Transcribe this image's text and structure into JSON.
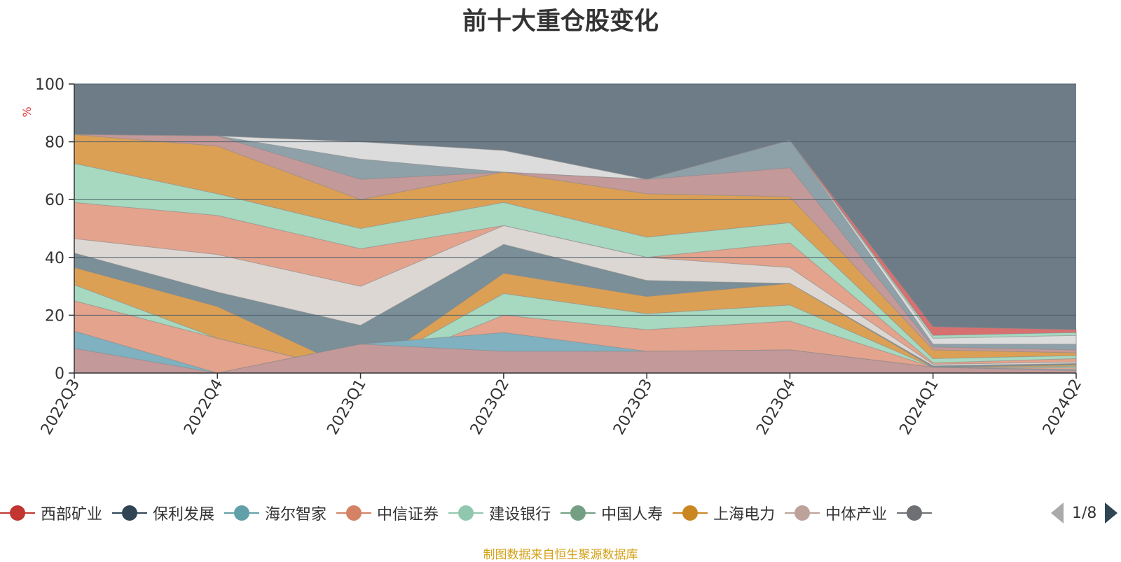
{
  "chart_data": {
    "type": "area",
    "title": "前十大重仓股变化",
    "ylabel": "%",
    "ylim": [
      0,
      100
    ],
    "yticks": [
      "0",
      "20",
      "40",
      "60",
      "80",
      "100"
    ],
    "categories": [
      "2022Q3",
      "2022Q4",
      "2023Q1",
      "2023Q2",
      "2023Q3",
      "2023Q4",
      "2024Q1",
      "2024Q2"
    ],
    "grid": true,
    "legend_position": "bottom",
    "plot_background": "#6e7c88",
    "series": [
      {
        "color": "#c4999a",
        "values": [
          8.5,
          0,
          10,
          7.5,
          7.5,
          8,
          2,
          0.8
        ]
      },
      {
        "color": "#7fb1c0",
        "values": [
          14.5,
          0,
          10,
          14,
          7.5,
          8,
          2,
          1.2
        ]
      },
      {
        "color": "#e3a38c",
        "values": [
          25,
          12,
          0,
          20,
          15,
          18,
          2,
          1.8
        ]
      },
      {
        "color": "#a7d8c0",
        "values": [
          30.5,
          12,
          0,
          27.5,
          20.5,
          23.5,
          2,
          2.3
        ]
      },
      {
        "color": "#dca055",
        "values": [
          36.5,
          23,
          0,
          34.5,
          26.5,
          31,
          2,
          2.8
        ]
      },
      {
        "color": "#7a8f98",
        "values": [
          41.5,
          28,
          16.5,
          44.5,
          32,
          31,
          2.5,
          3.3
        ]
      },
      {
        "color": "#dcd7d3",
        "values": [
          46.5,
          41,
          30,
          51,
          40,
          36.5,
          3,
          3.8
        ]
      },
      {
        "color": "#e3a38c",
        "values": [
          59,
          54.5,
          43,
          51,
          40,
          45,
          3.5,
          5
        ]
      },
      {
        "color": "#a7d8c0",
        "values": [
          72.5,
          62,
          50,
          59,
          47,
          52,
          5,
          6
        ]
      },
      {
        "color": "#dca055",
        "values": [
          82.5,
          78.5,
          60,
          69.5,
          62,
          61,
          8,
          7
        ]
      },
      {
        "color": "#c4999a",
        "values": [
          82.5,
          82,
          67,
          69.5,
          67,
          71,
          9,
          8
        ]
      },
      {
        "color": "#8fa1a8",
        "values": [
          82.5,
          82,
          74,
          69.5,
          67,
          80.5,
          10,
          10
        ]
      },
      {
        "color": "#dcdcdc",
        "values": [
          82.5,
          82,
          80,
          77,
          67,
          80.5,
          12,
          13
        ]
      },
      {
        "color": "#a7d8c0",
        "values": [
          82.5,
          82,
          80,
          77,
          67,
          80.5,
          13,
          14
        ]
      },
      {
        "color": "#d87070",
        "values": [
          82.5,
          82,
          80,
          77,
          67,
          80.5,
          16,
          15
        ]
      }
    ]
  },
  "legend": {
    "items": [
      {
        "label": "西部矿业",
        "color": "#c23531"
      },
      {
        "label": "保利发展",
        "color": "#2f4554"
      },
      {
        "label": "海尔智家",
        "color": "#61a0a8"
      },
      {
        "label": "中信证券",
        "color": "#d48265"
      },
      {
        "label": "建设银行",
        "color": "#91c7ae"
      },
      {
        "label": "中国人寿",
        "color": "#749f83"
      },
      {
        "label": "上海电力",
        "color": "#ca8622"
      },
      {
        "label": "中体产业",
        "color": "#bda29a"
      },
      {
        "label": "",
        "color": "#6e7074"
      }
    ],
    "page_text": "1/8"
  },
  "footer": "制图数据来自恒生聚源数据库"
}
